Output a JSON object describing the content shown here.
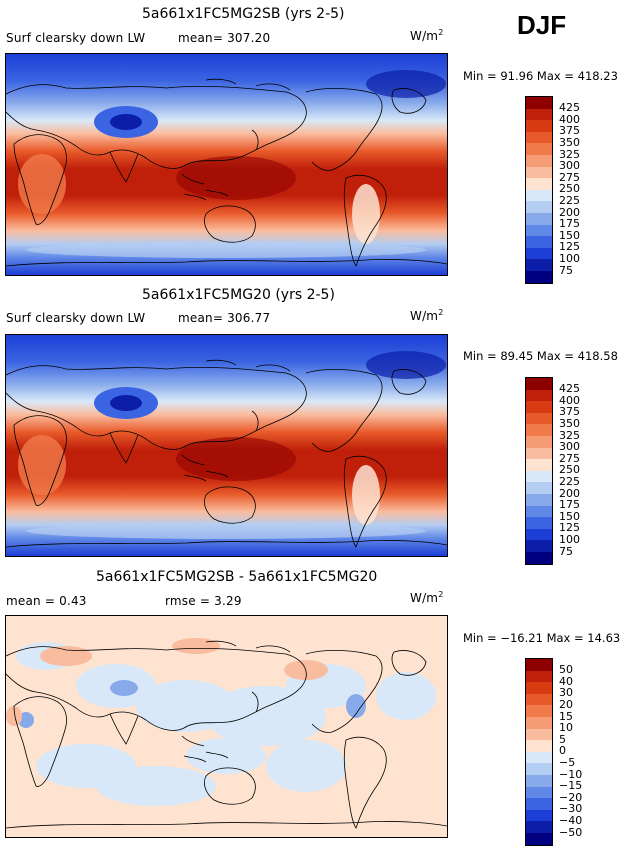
{
  "season": "DJF",
  "panels": [
    {
      "id": "top",
      "title": "5a661x1FC5MG2SB (yrs 2-5)",
      "variable": "Surf clearsky down LW",
      "stat_text": "mean= 307.20",
      "units_base": "W/m",
      "units_exp": "2",
      "min_max_text": "Min =  91.96 Max = 418.23",
      "kind": "field"
    },
    {
      "id": "mid",
      "title": "5a661x1FC5MG20 (yrs 2-5)",
      "variable": "Surf clearsky down LW",
      "stat_text": "mean= 306.77",
      "units_base": "W/m",
      "units_exp": "2",
      "min_max_text": "Min =  89.45 Max = 418.58",
      "kind": "field"
    },
    {
      "id": "diff",
      "title": "5a661x1FC5MG2SB - 5a661x1FC5MG20",
      "mean_text": "mean =   0.43",
      "rmse_text": "rmse =    3.29",
      "units_base": "W/m",
      "units_exp": "2",
      "min_max_text": "Min = −16.21 Max =  14.63",
      "kind": "diff"
    }
  ],
  "colorbar_field": {
    "labels": [
      "425",
      "400",
      "375",
      "350",
      "325",
      "300",
      "275",
      "250",
      "225",
      "200",
      "175",
      "150",
      "125",
      "100",
      "75"
    ],
    "colors": [
      "#8e0000",
      "#c0200a",
      "#d83a12",
      "#e85a2a",
      "#f07a4a",
      "#f69c74",
      "#fabc9e",
      "#fde3d0",
      "#d8e8f8",
      "#b4cdf2",
      "#88aaeb",
      "#6088e6",
      "#3a64e2",
      "#1c3ed6",
      "#0c1ea8",
      "#000080"
    ]
  },
  "colorbar_diff": {
    "labels": [
      "50",
      "40",
      "30",
      "20",
      "15",
      "10",
      "5",
      "0",
      "−5",
      "−10",
      "−15",
      "−20",
      "−30",
      "−40",
      "−50"
    ],
    "colors": [
      "#8e0000",
      "#c0200a",
      "#d83a12",
      "#e85a2a",
      "#f07a4a",
      "#f69c74",
      "#fabc9e",
      "#fde3d0",
      "#d8e8f8",
      "#b4cdf2",
      "#88aaeb",
      "#6088e6",
      "#3a64e2",
      "#1c3ed6",
      "#0c1ea8",
      "#000080"
    ]
  }
}
